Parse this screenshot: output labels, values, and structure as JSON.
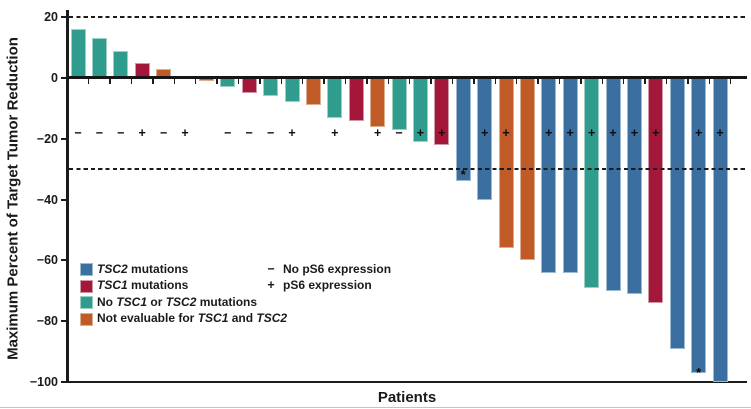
{
  "chart_data": {
    "type": "bar",
    "title": "",
    "xlabel": "Patients",
    "ylabel": "Maximum Percent of Target Tumor Reduction",
    "ylim": [
      -100,
      22
    ],
    "grid": false,
    "legend_position": "inside-bottom-left",
    "yticks": [
      {
        "v": 20,
        "label": "20"
      },
      {
        "v": 0,
        "label": "0"
      },
      {
        "v": -20,
        "label": "−20"
      },
      {
        "v": -40,
        "label": "−40"
      },
      {
        "v": -60,
        "label": "−60"
      },
      {
        "v": -80,
        "label": "−80"
      },
      {
        "v": -100,
        "label": "−100"
      }
    ],
    "reference_lines_y": [
      20,
      -30
    ],
    "ps6_row_value": -18,
    "groups": {
      "tsc2": {
        "color": "#3a6fa0",
        "edge": "#9db9d2"
      },
      "tsc1": {
        "color": "#a5173a",
        "edge": "#cf9aa6"
      },
      "none": {
        "color": "#309c8d",
        "edge": "#9fcfc4"
      },
      "not_evaluable": {
        "color": "#c05b28",
        "edge": "#dcae90"
      }
    },
    "patients": [
      {
        "n": 1,
        "value": 16,
        "group": "none",
        "ps6": "−"
      },
      {
        "n": 2,
        "value": 13,
        "group": "none",
        "ps6": "−"
      },
      {
        "n": 3,
        "value": 9,
        "group": "none",
        "ps6": "−"
      },
      {
        "n": 4,
        "value": 5,
        "group": "tsc1",
        "ps6": "+"
      },
      {
        "n": 5,
        "value": 3,
        "group": "not_evaluable",
        "ps6": "−"
      },
      {
        "n": 6,
        "value": 0,
        "group": null,
        "ps6": "+"
      },
      {
        "n": 7,
        "value": -1,
        "group": "not_evaluable",
        "ps6": null
      },
      {
        "n": 8,
        "value": -3,
        "group": "none",
        "ps6": "−"
      },
      {
        "n": 9,
        "value": -5,
        "group": "tsc1",
        "ps6": "−"
      },
      {
        "n": 10,
        "value": -6,
        "group": "none",
        "ps6": "−"
      },
      {
        "n": 11,
        "value": -8,
        "group": "none",
        "ps6": "+"
      },
      {
        "n": 12,
        "value": -9,
        "group": "not_evaluable",
        "ps6": null
      },
      {
        "n": 13,
        "value": -13,
        "group": "none",
        "ps6": "+"
      },
      {
        "n": 14,
        "value": -14,
        "group": "tsc1",
        "ps6": null
      },
      {
        "n": 15,
        "value": -16,
        "group": "not_evaluable",
        "ps6": "+"
      },
      {
        "n": 16,
        "value": -17,
        "group": "none",
        "ps6": "−"
      },
      {
        "n": 17,
        "value": -21,
        "group": "none",
        "ps6": "+"
      },
      {
        "n": 18,
        "value": -22,
        "group": "tsc1",
        "ps6": "+"
      },
      {
        "n": 19,
        "value": -34,
        "group": "tsc2",
        "ps6": null,
        "marker": {
          "glyph": "*",
          "at": -31
        }
      },
      {
        "n": 20,
        "value": -40,
        "group": "tsc2",
        "ps6": "+"
      },
      {
        "n": 21,
        "value": -56,
        "group": "not_evaluable",
        "ps6": "+"
      },
      {
        "n": 22,
        "value": -60,
        "group": "not_evaluable",
        "ps6": null
      },
      {
        "n": 23,
        "value": -64,
        "group": "tsc2",
        "ps6": "+"
      },
      {
        "n": 24,
        "value": -64,
        "group": "tsc2",
        "ps6": "+"
      },
      {
        "n": 25,
        "value": -69,
        "group": "none",
        "ps6": "+"
      },
      {
        "n": 26,
        "value": -70,
        "group": "tsc2",
        "ps6": "+"
      },
      {
        "n": 27,
        "value": -71,
        "group": "tsc2",
        "ps6": "+"
      },
      {
        "n": 28,
        "value": -74,
        "group": "tsc1",
        "ps6": "+"
      },
      {
        "n": 29,
        "value": -89,
        "group": "tsc2",
        "ps6": null
      },
      {
        "n": 30,
        "value": -97,
        "group": "tsc2",
        "ps6": "+",
        "marker": {
          "glyph": "*",
          "at": -96
        }
      },
      {
        "n": 31,
        "value": -100,
        "group": "tsc2",
        "ps6": "+"
      }
    ],
    "legend": {
      "items": [
        {
          "group": "tsc2",
          "segments": [
            {
              "t": "TSC2",
              "i": true
            },
            {
              "t": " mutations",
              "i": false
            }
          ]
        },
        {
          "group": "tsc1",
          "segments": [
            {
              "t": "TSC1",
              "i": true
            },
            {
              "t": " mutations",
              "i": false
            }
          ]
        },
        {
          "group": "none",
          "segments": [
            {
              "t": "No ",
              "i": false
            },
            {
              "t": "TSC1",
              "i": true
            },
            {
              "t": " or ",
              "i": false
            },
            {
              "t": "TSC2",
              "i": true
            },
            {
              "t": " mutations",
              "i": false
            }
          ]
        },
        {
          "group": "not_evaluable",
          "segments": [
            {
              "t": "Not evaluable for ",
              "i": false
            },
            {
              "t": "TSC1",
              "i": true
            },
            {
              "t": " and ",
              "i": false
            },
            {
              "t": "TSC2",
              "i": true
            }
          ]
        }
      ],
      "ps6_items": [
        {
          "symbol": "−",
          "label": "No pS6 expression"
        },
        {
          "symbol": "+",
          "label": "pS6 expression"
        }
      ]
    }
  }
}
